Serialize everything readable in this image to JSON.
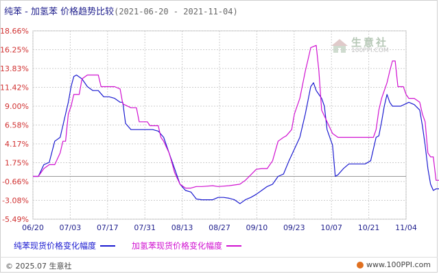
{
  "header": {
    "title": "纯苯 - 加氢苯 价格趋势比较",
    "date_range": "(2021-06-20 - 2021-11-04)"
  },
  "watermark": {
    "logo_text": "生意社",
    "url": "100PPI.COM"
  },
  "footer": {
    "copyright": "© 2025.07 生意社",
    "site": "www.100PPI.com"
  },
  "chart_data": {
    "type": "line",
    "title": "纯苯 - 加氢苯 价格趋势比较",
    "xlabel": "",
    "ylabel": "",
    "x_ticks": [
      "06/20",
      "07/03",
      "07/17",
      "07/31",
      "08/13",
      "08/27",
      "09/10",
      "09/23",
      "10/07",
      "10/21",
      "11/04"
    ],
    "y_ticks": [
      "18.66%",
      "16.25%",
      "13.83%",
      "11.42%",
      "9.00%",
      "6.58%",
      "4.17%",
      "1.75%",
      "-0.66%",
      "-3.08%",
      "-5.49%"
    ],
    "ylim": [
      -5.49,
      18.66
    ],
    "x_range_days": [
      0,
      137
    ],
    "grid": true,
    "legend_position": "bottom",
    "series": [
      {
        "name": "纯苯现货价格变化幅度",
        "color": "#1a1ad0",
        "points": [
          [
            0,
            0.0
          ],
          [
            2,
            0.0
          ],
          [
            4,
            1.5
          ],
          [
            6,
            1.8
          ],
          [
            8,
            4.5
          ],
          [
            10,
            5.0
          ],
          [
            12,
            8.0
          ],
          [
            13,
            9.5
          ],
          [
            14,
            11.5
          ],
          [
            15,
            12.8
          ],
          [
            16,
            13.0
          ],
          [
            18,
            12.5
          ],
          [
            20,
            11.5
          ],
          [
            22,
            11.0
          ],
          [
            24,
            11.0
          ],
          [
            26,
            10.2
          ],
          [
            28,
            10.2
          ],
          [
            30,
            10.0
          ],
          [
            32,
            9.5
          ],
          [
            33,
            9.5
          ],
          [
            34,
            6.8
          ],
          [
            36,
            6.0
          ],
          [
            40,
            6.0
          ],
          [
            44,
            6.0
          ],
          [
            46,
            5.8
          ],
          [
            48,
            5.0
          ],
          [
            50,
            3.0
          ],
          [
            52,
            1.0
          ],
          [
            54,
            -1.0
          ],
          [
            56,
            -1.8
          ],
          [
            58,
            -2.0
          ],
          [
            60,
            -2.9
          ],
          [
            62,
            -3.0
          ],
          [
            66,
            -3.0
          ],
          [
            68,
            -2.7
          ],
          [
            70,
            -2.7
          ],
          [
            72,
            -2.8
          ],
          [
            74,
            -3.0
          ],
          [
            76,
            -3.5
          ],
          [
            78,
            -3.0
          ],
          [
            80,
            -2.7
          ],
          [
            82,
            -2.3
          ],
          [
            84,
            -1.8
          ],
          [
            86,
            -1.3
          ],
          [
            88,
            -1.0
          ],
          [
            90,
            0.0
          ],
          [
            92,
            0.3
          ],
          [
            94,
            2.0
          ],
          [
            96,
            3.5
          ],
          [
            98,
            5.0
          ],
          [
            100,
            8.0
          ],
          [
            102,
            11.5
          ],
          [
            103,
            12.0
          ],
          [
            104,
            11.0
          ],
          [
            105,
            10.5
          ],
          [
            106,
            10.0
          ],
          [
            107,
            9.0
          ],
          [
            108,
            6.0
          ],
          [
            110,
            4.0
          ],
          [
            111,
            0.0
          ],
          [
            112,
            0.2
          ],
          [
            114,
            1.0
          ],
          [
            116,
            1.6
          ],
          [
            118,
            1.6
          ],
          [
            122,
            1.6
          ],
          [
            124,
            2.0
          ],
          [
            126,
            5.0
          ],
          [
            127,
            5.2
          ],
          [
            128,
            7.0
          ],
          [
            129,
            9.0
          ],
          [
            130,
            10.5
          ],
          [
            131,
            9.5
          ],
          [
            132,
            9.0
          ],
          [
            135,
            9.0
          ],
          [
            138,
            9.5
          ],
          [
            140,
            9.2
          ],
          [
            142,
            8.5
          ],
          [
            143,
            6.5
          ],
          [
            144,
            4.0
          ],
          [
            145,
            1.0
          ],
          [
            146,
            -1.0
          ],
          [
            147,
            -1.8
          ],
          [
            148,
            -1.6
          ],
          [
            150,
            -1.6
          ],
          [
            152,
            -1.4
          ],
          [
            154,
            -1.4
          ],
          [
            155,
            -1.7
          ]
        ]
      },
      {
        "name": "加氢苯现货价格变化幅度",
        "color": "#d010d0",
        "points": [
          [
            0,
            0.0
          ],
          [
            2,
            0.0
          ],
          [
            4,
            1.0
          ],
          [
            6,
            1.5
          ],
          [
            8,
            1.5
          ],
          [
            10,
            3.0
          ],
          [
            11,
            4.5
          ],
          [
            12,
            4.5
          ],
          [
            13,
            8.0
          ],
          [
            14,
            9.0
          ],
          [
            15,
            10.5
          ],
          [
            17,
            10.5
          ],
          [
            18,
            12.5
          ],
          [
            20,
            13.0
          ],
          [
            22,
            13.0
          ],
          [
            24,
            13.0
          ],
          [
            25,
            11.5
          ],
          [
            30,
            11.5
          ],
          [
            32,
            11.2
          ],
          [
            33,
            9.3
          ],
          [
            36,
            8.8
          ],
          [
            38,
            8.8
          ],
          [
            39,
            7.0
          ],
          [
            42,
            7.0
          ],
          [
            43,
            6.5
          ],
          [
            46,
            6.5
          ],
          [
            47,
            5.0
          ],
          [
            48,
            4.5
          ],
          [
            50,
            3.0
          ],
          [
            51,
            1.8
          ],
          [
            52,
            0.5
          ],
          [
            54,
            -1.0
          ],
          [
            56,
            -1.5
          ],
          [
            58,
            -1.5
          ],
          [
            60,
            -1.3
          ],
          [
            62,
            -1.3
          ],
          [
            66,
            -1.2
          ],
          [
            68,
            -1.3
          ],
          [
            72,
            -1.2
          ],
          [
            76,
            -1.0
          ],
          [
            78,
            -0.5
          ],
          [
            80,
            0.2
          ],
          [
            82,
            0.9
          ],
          [
            84,
            1.0
          ],
          [
            86,
            1.0
          ],
          [
            88,
            2.0
          ],
          [
            90,
            4.5
          ],
          [
            92,
            5.0
          ],
          [
            93,
            5.2
          ],
          [
            95,
            6.0
          ],
          [
            96,
            8.0
          ],
          [
            98,
            10.0
          ],
          [
            100,
            13.5
          ],
          [
            101,
            15.0
          ],
          [
            102,
            16.5
          ],
          [
            104,
            16.8
          ],
          [
            105,
            13.5
          ],
          [
            106,
            8.5
          ],
          [
            108,
            7.0
          ],
          [
            110,
            5.5
          ],
          [
            112,
            5.0
          ],
          [
            114,
            5.0
          ],
          [
            120,
            5.0
          ],
          [
            125,
            5.0
          ],
          [
            126,
            6.0
          ],
          [
            127,
            8.5
          ],
          [
            128,
            10.0
          ],
          [
            130,
            12.0
          ],
          [
            131,
            13.5
          ],
          [
            132,
            14.8
          ],
          [
            133,
            14.8
          ],
          [
            134,
            11.5
          ],
          [
            136,
            11.5
          ],
          [
            137,
            10.5
          ],
          [
            138,
            10.0
          ],
          [
            140,
            10.0
          ],
          [
            142,
            9.5
          ],
          [
            143,
            8.0
          ],
          [
            144,
            7.0
          ],
          [
            145,
            3.0
          ],
          [
            146,
            2.5
          ],
          [
            147,
            2.5
          ],
          [
            148,
            -0.5
          ],
          [
            150,
            -0.5
          ],
          [
            155,
            -0.5
          ]
        ]
      }
    ]
  }
}
